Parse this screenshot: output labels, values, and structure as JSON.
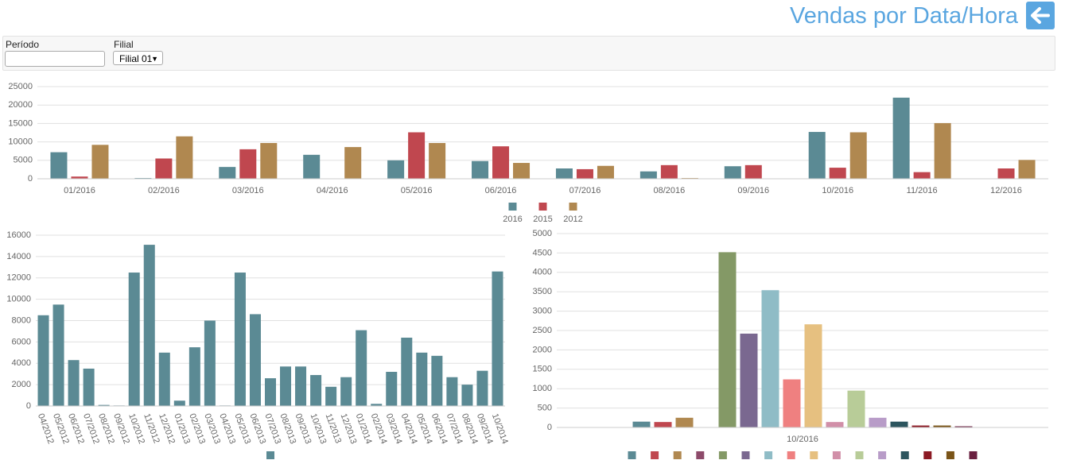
{
  "header": {
    "title": "Vendas por Data/Hora"
  },
  "filters": {
    "period_label": "Período",
    "branch_label": "Filial",
    "branch_value": "Filial 01"
  },
  "chart_data": [
    {
      "type": "bar",
      "categories": [
        "01/2016",
        "02/2016",
        "03/2016",
        "04/2016",
        "05/2016",
        "06/2016",
        "07/2016",
        "08/2016",
        "09/2016",
        "10/2016",
        "11/2016",
        "12/2016"
      ],
      "series": [
        {
          "name": "2016",
          "color": "#5b8a94",
          "values": [
            7200,
            200,
            3200,
            6500,
            5000,
            4800,
            2800,
            2000,
            3400,
            12700,
            22000,
            0
          ]
        },
        {
          "name": "2015",
          "color": "#c0474f",
          "values": [
            600,
            5500,
            8000,
            0,
            12600,
            8800,
            2600,
            3700,
            3700,
            3000,
            1800,
            2800
          ]
        },
        {
          "name": "2012",
          "color": "#b08850",
          "values": [
            9200,
            11500,
            9700,
            8600,
            9700,
            4300,
            3500,
            200,
            0,
            12600,
            15100,
            5100
          ]
        }
      ],
      "ylim": [
        0,
        25000
      ],
      "yticks": [
        0,
        5000,
        10000,
        15000,
        20000,
        25000
      ],
      "grid": true
    },
    {
      "type": "bar",
      "categories": [
        "04/2012",
        "05/2012",
        "06/2012",
        "07/2012",
        "08/2012",
        "09/2012",
        "10/2012",
        "11/2012",
        "12/2012",
        "01/2013",
        "02/2013",
        "03/2013",
        "04/2013",
        "05/2013",
        "06/2013",
        "07/2013",
        "08/2013",
        "09/2013",
        "10/2013",
        "11/2013",
        "12/2013",
        "01/2014",
        "02/2014",
        "03/2014",
        "04/2014",
        "05/2014",
        "06/2014",
        "07/2014",
        "08/2014",
        "09/2014",
        "10/2014"
      ],
      "series": [
        {
          "color": "#5b8a94",
          "values": [
            8500,
            9500,
            4300,
            3500,
            100,
            50,
            12500,
            15100,
            5000,
            500,
            5500,
            8000,
            50,
            12500,
            8600,
            2600,
            3700,
            3700,
            2900,
            1800,
            2700,
            7100,
            200,
            3200,
            6400,
            5000,
            4700,
            2700,
            2000,
            3300,
            12600
          ]
        }
      ],
      "ylim": [
        0,
        16000
      ],
      "yticks": [
        0,
        2000,
        4000,
        6000,
        8000,
        10000,
        12000,
        14000,
        16000
      ],
      "grid": true
    },
    {
      "type": "bar",
      "categories": [
        "10/2016"
      ],
      "series": [
        {
          "color": "#5b8a94",
          "values": [
            150
          ]
        },
        {
          "color": "#c0474f",
          "values": [
            140
          ]
        },
        {
          "color": "#b08850",
          "values": [
            250
          ]
        },
        {
          "color": "#8d4a6a",
          "values": [
            0
          ]
        },
        {
          "color": "#849966",
          "values": [
            4520
          ]
        },
        {
          "color": "#7a6890",
          "values": [
            2420
          ]
        },
        {
          "color": "#8fbcc6",
          "values": [
            3540
          ]
        },
        {
          "color": "#ef8080",
          "values": [
            1240
          ]
        },
        {
          "color": "#e6c080",
          "values": [
            2660
          ]
        },
        {
          "color": "#d18fa8",
          "values": [
            140
          ]
        },
        {
          "color": "#b8cc98",
          "values": [
            950
          ]
        },
        {
          "color": "#b89cc8",
          "values": [
            250
          ]
        },
        {
          "color": "#2c555e",
          "values": [
            150
          ]
        },
        {
          "color": "#8c1a24",
          "values": [
            50
          ]
        },
        {
          "color": "#7a5418",
          "values": [
            50
          ]
        },
        {
          "color": "#6a2040",
          "values": [
            30
          ]
        }
      ],
      "ylim": [
        0,
        5000
      ],
      "yticks": [
        0,
        500,
        1000,
        1500,
        2000,
        2500,
        3000,
        3500,
        4000,
        4500,
        5000
      ],
      "grid": true
    }
  ]
}
